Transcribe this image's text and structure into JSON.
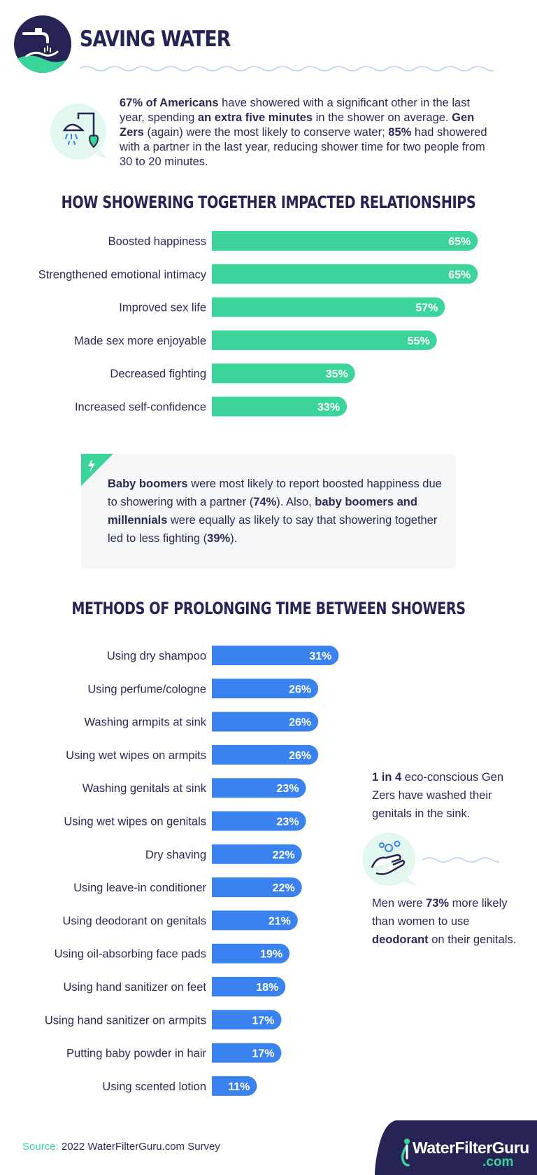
{
  "header": {
    "title": "SAVING WATER",
    "icon": "faucet-hands-icon"
  },
  "intro": {
    "icon": "shower-heart-icon",
    "parts": [
      {
        "b": "67% of Americans"
      },
      {
        "t": " have showered with a significant other in the last year, spending "
      },
      {
        "b": "an extra five minutes"
      },
      {
        "t": " in the shower on average. "
      },
      {
        "b": "Gen Zers"
      },
      {
        "t": " (again) were the most likely to conserve water; "
      },
      {
        "b": "85%"
      },
      {
        "t": " had showered with a partner in the last year, reducing shower time for two people from 30 to 20 minutes."
      }
    ]
  },
  "chart_data": [
    {
      "type": "bar",
      "orientation": "horizontal",
      "title": "HOW SHOWERING TOGETHER IMPACTED RELATIONSHIPS",
      "categories": [
        "Boosted happiness",
        "Strengthened emotional intimacy",
        "Improved sex life",
        "Made sex more enjoyable",
        "Decreased fighting",
        "Increased self-confidence"
      ],
      "values": [
        65,
        65,
        57,
        55,
        35,
        33
      ],
      "value_labels": [
        "65%",
        "65%",
        "57%",
        "55%",
        "35%",
        "33%"
      ],
      "unit": "%",
      "color": "#3bd49b"
    },
    {
      "type": "bar",
      "orientation": "horizontal",
      "title": "METHODS OF PROLONGING TIME BETWEEN SHOWERS",
      "categories": [
        "Using dry shampoo",
        "Using perfume/cologne",
        "Washing armpits at sink",
        "Using wet wipes on armpits",
        "Washing genitals at sink",
        "Using wet wipes on genitals",
        "Dry shaving",
        "Using leave-in conditioner",
        "Using deodorant on genitals",
        "Using oil-absorbing face pads",
        "Using hand sanitizer on feet",
        "Using hand sanitizer on armpits",
        "Putting baby powder in hair",
        "Using scented lotion"
      ],
      "values": [
        31,
        26,
        26,
        26,
        23,
        23,
        22,
        22,
        21,
        19,
        18,
        17,
        17,
        11
      ],
      "value_labels": [
        "31%",
        "26%",
        "26%",
        "26%",
        "23%",
        "23%",
        "22%",
        "22%",
        "21%",
        "19%",
        "18%",
        "17%",
        "17%",
        "11%"
      ],
      "unit": "%",
      "color": "#3a82ef"
    }
  ],
  "callout": {
    "icon": "lightning-icon",
    "parts": [
      {
        "b": "Baby boomers"
      },
      {
        "t": " were most likely to report boosted happiness due to showering with a partner ("
      },
      {
        "b": "74%"
      },
      {
        "t": "). Also, "
      },
      {
        "b": "baby boomers and millennials"
      },
      {
        "t": " were equally as likely to say that showering together led to less fighting ("
      },
      {
        "b": "39%"
      },
      {
        "t": ")."
      }
    ]
  },
  "sidebar": {
    "note1": [
      {
        "b": "1 in 4"
      },
      {
        "t": " eco-conscious Gen Zers have washed their genitals in the sink."
      }
    ],
    "icon": "hand-washing-icon",
    "note2": [
      {
        "t": "Men were "
      },
      {
        "b": "73%"
      },
      {
        "t": " more likely than women to use "
      },
      {
        "b": "deodorant"
      },
      {
        "t": " on their genitals."
      }
    ]
  },
  "footer": {
    "source_label": "Source:",
    "source_text": " 2022 WaterFilterGuru.com Survey",
    "logo_name": "WaterFilterGuru",
    "logo_tld": ".com"
  },
  "colors": {
    "navy": "#252454",
    "green": "#3bd49b",
    "blue": "#3a82ef"
  }
}
